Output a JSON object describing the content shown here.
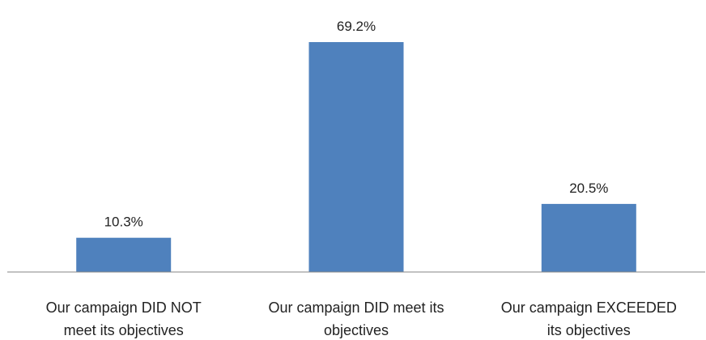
{
  "chart_data": {
    "type": "bar",
    "categories": [
      [
        "Our campaign DID NOT",
        "meet its objectives"
      ],
      [
        "Our campaign DID meet its",
        "objectives"
      ],
      [
        "Our campaign EXCEEDED",
        "its objectives"
      ]
    ],
    "values": [
      10.3,
      69.2,
      20.5
    ],
    "data_labels": [
      "10.3%",
      "69.2%",
      "20.5%"
    ],
    "ylim": [
      0,
      80
    ],
    "grid": false,
    "legend": "none",
    "bar_color": "#4f81bd",
    "axis_color": "#868686"
  }
}
